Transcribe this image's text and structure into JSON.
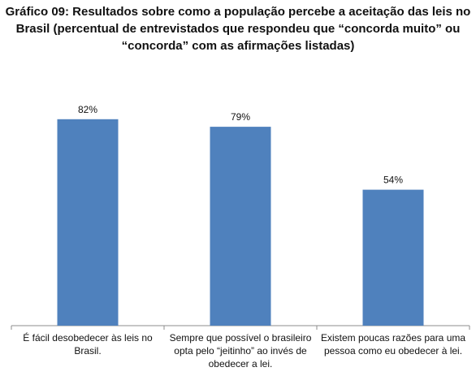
{
  "chart_data": {
    "type": "bar",
    "title": "Gráfico 09: Resultados sobre como a população percebe a aceitação das leis no Brasil (percentual de entrevistados que respondeu que “concorda muito” ou “concorda” com as afirmações listadas)",
    "categories": [
      "É fácil desobedecer às leis no Brasil.",
      "Sempre que possível o brasileiro opta pelo “jeitinho” ao invés de obedecer a lei.",
      "Existem poucas razões para uma pessoa como eu obedecer à lei."
    ],
    "values": [
      82,
      79,
      54
    ],
    "data_labels": [
      "82%",
      "79%",
      "54%"
    ],
    "unit": "%",
    "ylim": [
      0,
      100
    ],
    "grid": false,
    "legend": "none",
    "xlabel": "",
    "ylabel": "",
    "bar_color": "#4f81bd",
    "axis_color": "#8c8c8c"
  }
}
